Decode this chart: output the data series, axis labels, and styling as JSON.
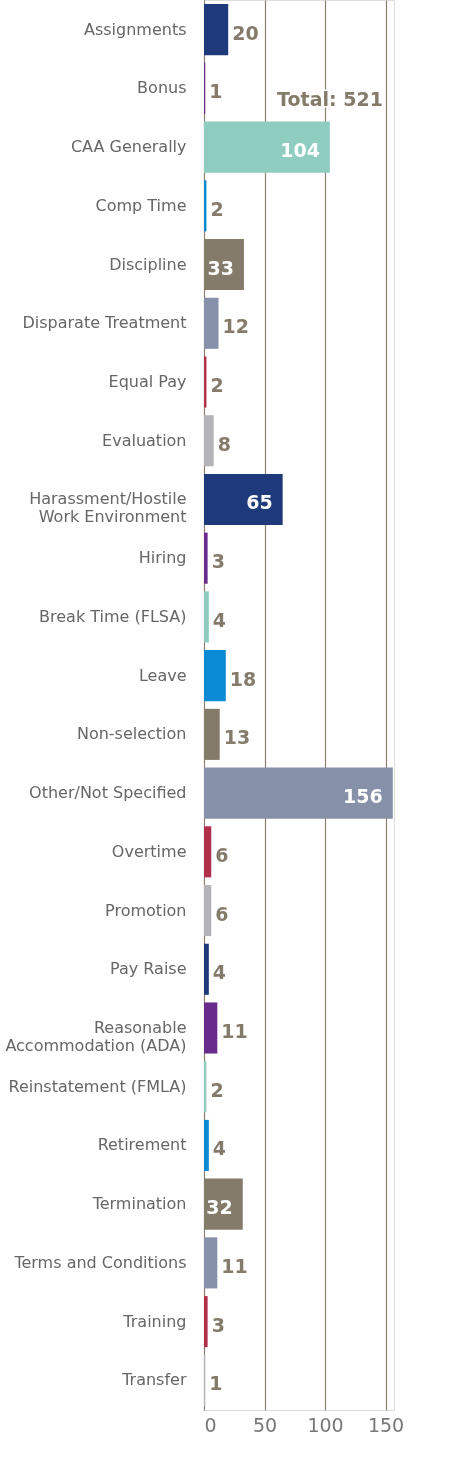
{
  "chart_data": {
    "type": "bar",
    "orientation": "horizontal",
    "categories": [
      "Assignments",
      "Bonus",
      "CAA Generally",
      "Comp Time",
      "Discipline",
      "Disparate Treatment",
      "Equal Pay",
      "Evaluation",
      "Harassment/Hostile\nWork Environment",
      "Hiring",
      "Break Time (FLSA)",
      "Leave",
      "Non-selection",
      "Other/Not Specified",
      "Overtime",
      "Promotion",
      "Pay Raise",
      "Reasonable\nAccommodation (ADA)",
      "Reinstatement (FMLA)",
      "Retirement",
      "Termination",
      "Terms and Conditions",
      "Training",
      "Transfer"
    ],
    "values": [
      20,
      1,
      104,
      2,
      33,
      12,
      2,
      8,
      65,
      3,
      4,
      18,
      13,
      156,
      6,
      6,
      4,
      11,
      2,
      4,
      32,
      11,
      3,
      1
    ],
    "colors": [
      "#1f3a7a",
      "#6a2c8a",
      "#8ecdc0",
      "#0a8ad2",
      "#857b6b",
      "#8690a8",
      "#b0304a",
      "#b3b3b8",
      "#1f3a7a",
      "#6a2c8a",
      "#8ecdc0",
      "#0a8ad2",
      "#857b6b",
      "#8690a8",
      "#b0304a",
      "#b3b3b8",
      "#1f3a7a",
      "#6a2c8a",
      "#8ecdc0",
      "#0a8ad2",
      "#857b6b",
      "#8690a8",
      "#b0304a",
      "#b3b3b8"
    ],
    "xlim": [
      0,
      157
    ],
    "xticks": [
      0,
      50,
      100,
      150
    ],
    "grid": "x",
    "data_labels": true,
    "annotations": [
      "Total: 521"
    ]
  }
}
